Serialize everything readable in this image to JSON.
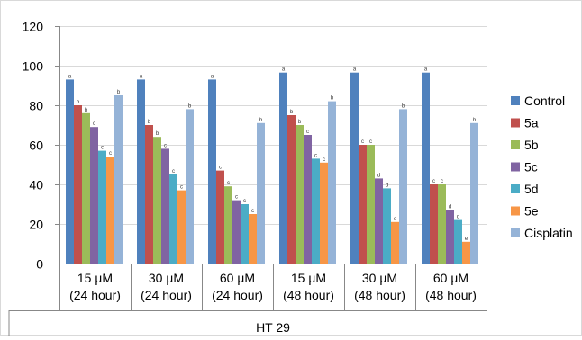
{
  "chart_data": {
    "type": "bar",
    "title": "",
    "xlabel": "HT 29",
    "ylabel": "",
    "ylim": [
      0,
      120
    ],
    "yticks": [
      0,
      20,
      40,
      60,
      80,
      100,
      120
    ],
    "grid": true,
    "legend_position": "right",
    "categories": [
      [
        "15 µM",
        "(24 hour)"
      ],
      [
        "30 µM",
        "(24 hour)"
      ],
      [
        "60 µM",
        "(24 hour)"
      ],
      [
        "15 µM",
        "(48 hour)"
      ],
      [
        "30 µM",
        "(48 hour)"
      ],
      [
        "60 µM",
        "(48 hour)"
      ]
    ],
    "series": [
      {
        "name": "Control",
        "color": "#4f81bd",
        "values": [
          93,
          93,
          93,
          96.5,
          96.5,
          96.5
        ],
        "labels": [
          "a",
          "a",
          "a",
          "a",
          "a",
          "a"
        ]
      },
      {
        "name": "5a",
        "color": "#c0504d",
        "values": [
          80,
          70,
          47,
          75,
          60,
          40
        ],
        "labels": [
          "b",
          "b",
          "c",
          "b",
          "c",
          "c"
        ]
      },
      {
        "name": "5b",
        "color": "#9bbb59",
        "values": [
          76,
          64,
          39,
          70,
          60,
          40
        ],
        "labels": [
          "b",
          "b",
          "c",
          "b",
          "c",
          "c"
        ]
      },
      {
        "name": "5c",
        "color": "#8064a2",
        "values": [
          69,
          58,
          32,
          65,
          43,
          27
        ],
        "labels": [
          "c",
          "c",
          "c",
          "c",
          "d",
          "d"
        ]
      },
      {
        "name": "5d",
        "color": "#4bacc6",
        "values": [
          57,
          45,
          30,
          53,
          38,
          22
        ],
        "labels": [
          "c",
          "c",
          "c",
          "c",
          "d",
          "d"
        ]
      },
      {
        "name": "5e",
        "color": "#f79646",
        "values": [
          54,
          37,
          25,
          51,
          21,
          11
        ],
        "labels": [
          "c",
          "c",
          "c",
          "c",
          "e",
          "e"
        ]
      },
      {
        "name": "Cisplatin",
        "color": "#95b3d7",
        "values": [
          85,
          78,
          71,
          82,
          78,
          71
        ],
        "labels": [
          "b",
          "b",
          "b",
          "b",
          "b",
          "b"
        ]
      }
    ]
  }
}
